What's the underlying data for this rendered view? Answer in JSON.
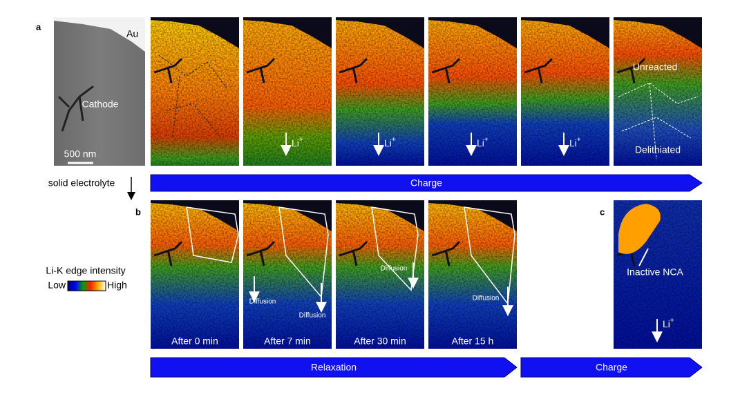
{
  "panel_a": {
    "label": "a",
    "sem": {
      "au": "Au",
      "cathode": "Cathode",
      "scale_bar": "500 nm"
    },
    "li_arrows": [
      {
        "base": "Li",
        "sup": "+"
      },
      {
        "base": "Li",
        "sup": "+"
      },
      {
        "base": "Li",
        "sup": "+"
      },
      {
        "base": "Li",
        "sup": "+"
      }
    ],
    "unreacted": "Unreacted",
    "delithiated": "Delithiated"
  },
  "electrolyte_label": "solid electrolyte",
  "charge_arrow_top": "Charge",
  "panel_b": {
    "label": "b",
    "times": [
      "After 0 min",
      "After 7 min",
      "After 30 min",
      "After 15 h"
    ],
    "diffusion": [
      "Diffusion",
      "Diffusion",
      "Diffusion",
      "Diffusion"
    ]
  },
  "panel_c": {
    "label": "c",
    "inactive": "Inactive NCA",
    "li": {
      "base": "Li",
      "sup": "+"
    }
  },
  "colorbar": {
    "title": "Li-K edge intensity",
    "low": "Low",
    "high": "High"
  },
  "bottom_arrows": [
    "Relaxation",
    "Charge"
  ]
}
